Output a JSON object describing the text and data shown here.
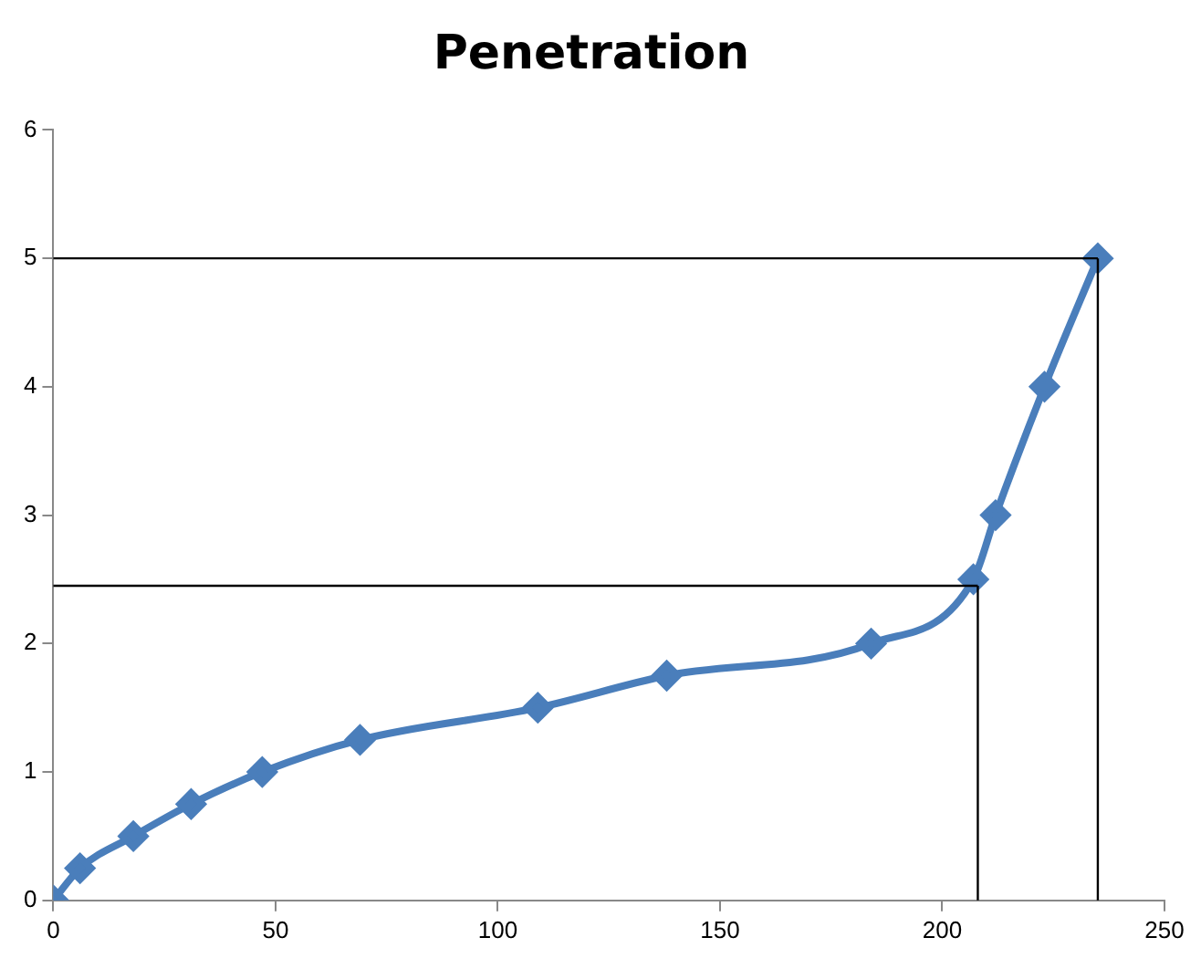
{
  "chart_data": {
    "type": "line",
    "title": "Penetration",
    "series": [
      {
        "color": "#4a7ebb",
        "x": [
          0,
          6,
          18,
          31,
          47,
          69,
          109,
          138,
          184,
          207,
          212,
          223,
          235
        ],
        "values": [
          0,
          0.25,
          0.5,
          0.75,
          1,
          1.25,
          1.5,
          1.75,
          2,
          2.5,
          3,
          4,
          5
        ]
      }
    ],
    "xlim": [
      0,
      250
    ],
    "xticks": [
      0,
      50,
      100,
      150,
      200,
      250
    ],
    "ylim": [
      0,
      6
    ],
    "yticks": [
      0,
      1,
      2,
      3,
      4,
      5,
      6
    ],
    "grid": false,
    "legend": false,
    "marker": "diamond",
    "line_style": "solid",
    "ref_lines": [
      {
        "axis": "y",
        "value": 5,
        "color": "#000000"
      },
      {
        "axis": "y",
        "value": 2.45,
        "color": "#000000"
      },
      {
        "axis": "x",
        "value": 235,
        "color": "#000000"
      },
      {
        "axis": "x",
        "value": 208,
        "color": "#000000"
      }
    ]
  }
}
